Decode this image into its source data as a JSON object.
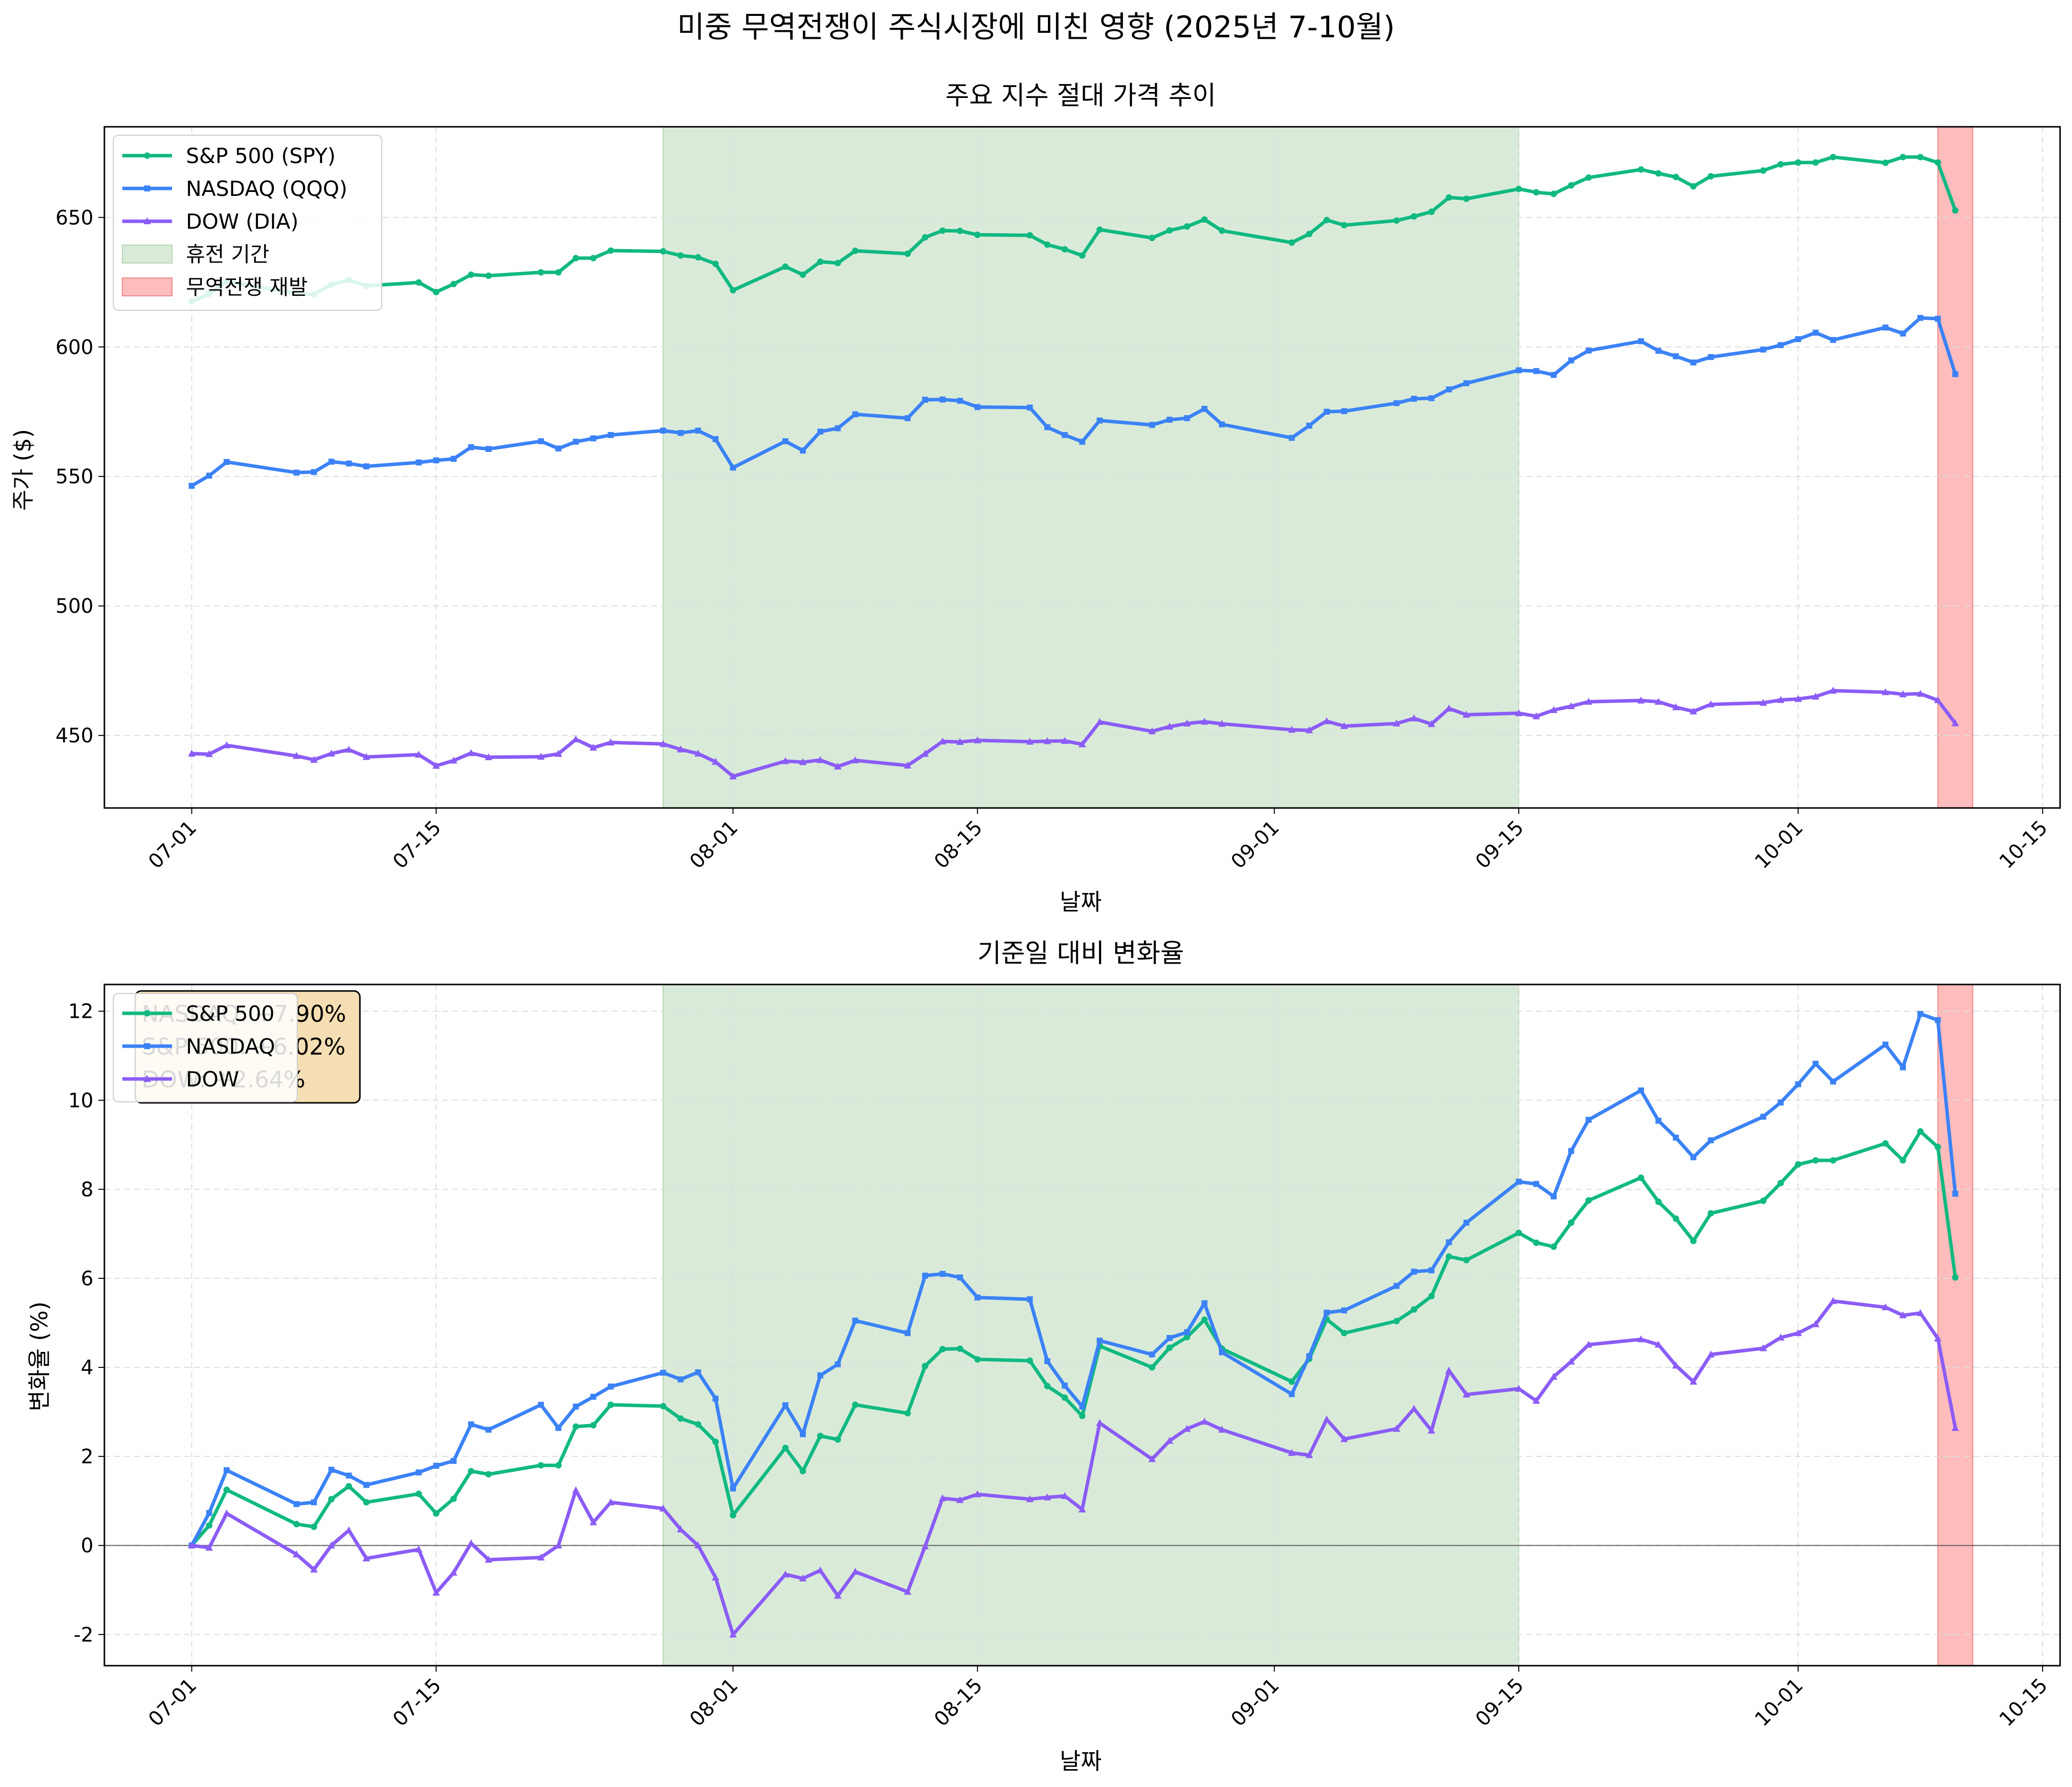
{
  "figure": {
    "title": "미중 무역전쟁이 주식시장에 미친 영향 (2025년 7-10월)"
  },
  "colors": {
    "sp500": "#10b981",
    "nasdaq": "#3b82f6",
    "dow": "#8b5cf6",
    "truce": "#d9ebd8",
    "trade_war": "#ffbcbc",
    "grid": "#dddddd",
    "info_box": "#f5deb3"
  },
  "legend_top": [
    {
      "label": "S&P 500 (SPY)",
      "kind": "line",
      "color": "#10b981",
      "marker": "o"
    },
    {
      "label": "NASDAQ (QQQ)",
      "kind": "line",
      "color": "#3b82f6",
      "marker": "s"
    },
    {
      "label": "DOW (DIA)",
      "kind": "line",
      "color": "#8b5cf6",
      "marker": "^"
    },
    {
      "label": "휴전 기간",
      "kind": "patch",
      "color": "#d9ebd8",
      "edge": "#b5d6b2"
    },
    {
      "label": "무역전쟁 재발",
      "kind": "patch",
      "color": "#ffbcbc",
      "edge": "#f08a8a"
    }
  ],
  "legend_bottom": [
    {
      "label": "S&P 500",
      "color": "#10b981",
      "marker": "o"
    },
    {
      "label": "NASDAQ",
      "color": "#3b82f6",
      "marker": "s"
    },
    {
      "label": "DOW",
      "color": "#8b5cf6",
      "marker": "^"
    }
  ],
  "info_box": {
    "lines": [
      "NASDAQ: +7.90%",
      "S&P 500: +6.02%",
      "DOW: +2.64%"
    ]
  },
  "chart_data": [
    {
      "type": "line",
      "title": "주요 지수 절대 가격 추이",
      "xlabel": "날짜",
      "ylabel": "주가 ($)",
      "x_ticks": [
        "07-01",
        "07-15",
        "08-01",
        "08-15",
        "09-01",
        "09-15",
        "10-01",
        "10-15"
      ],
      "y_ticks": [
        "450",
        "500",
        "550",
        "600",
        "650"
      ],
      "xlim": [
        "2025-06-26",
        "2025-10-16"
      ],
      "ylim": [
        422,
        685
      ],
      "grid": true,
      "legend_position": "upper left",
      "shaded_regions": [
        {
          "label": "휴전 기간",
          "start": "2025-07-28",
          "end": "2025-09-15"
        },
        {
          "label": "무역전쟁 재발",
          "start": "2025-10-09",
          "end": "2025-10-11"
        }
      ],
      "x": [
        "2025-07-01",
        "2025-07-02",
        "2025-07-03",
        "2025-07-07",
        "2025-07-08",
        "2025-07-09",
        "2025-07-10",
        "2025-07-11",
        "2025-07-14",
        "2025-07-15",
        "2025-07-16",
        "2025-07-17",
        "2025-07-18",
        "2025-07-21",
        "2025-07-22",
        "2025-07-23",
        "2025-07-24",
        "2025-07-25",
        "2025-07-28",
        "2025-07-29",
        "2025-07-30",
        "2025-07-31",
        "2025-08-01",
        "2025-08-04",
        "2025-08-05",
        "2025-08-06",
        "2025-08-07",
        "2025-08-08",
        "2025-08-11",
        "2025-08-12",
        "2025-08-13",
        "2025-08-14",
        "2025-08-15",
        "2025-08-18",
        "2025-08-19",
        "2025-08-20",
        "2025-08-21",
        "2025-08-22",
        "2025-08-25",
        "2025-08-26",
        "2025-08-27",
        "2025-08-28",
        "2025-08-29",
        "2025-09-02",
        "2025-09-03",
        "2025-09-04",
        "2025-09-05",
        "2025-09-08",
        "2025-09-09",
        "2025-09-10",
        "2025-09-11",
        "2025-09-12",
        "2025-09-15",
        "2025-09-16",
        "2025-09-17",
        "2025-09-18",
        "2025-09-19",
        "2025-09-22",
        "2025-09-23",
        "2025-09-24",
        "2025-09-25",
        "2025-09-26",
        "2025-09-29",
        "2025-09-30",
        "2025-10-01",
        "2025-10-02",
        "2025-10-03",
        "2025-10-06",
        "2025-10-07",
        "2025-10-08",
        "2025-10-09",
        "2025-10-10"
      ],
      "series": [
        {
          "name": "S&P 500 (SPY)",
          "marker": "o",
          "values": [
            617.6,
            620.5,
            625.3,
            620.6,
            620.3,
            624.1,
            625.8,
            623.6,
            624.9,
            621.2,
            624.3,
            627.9,
            627.5,
            628.8,
            628.8,
            634.3,
            634.3,
            637.2,
            636.9,
            635.3,
            634.6,
            632.1,
            621.9,
            631.0,
            627.9,
            632.9,
            632.4,
            637.1,
            636.0,
            642.3,
            644.9,
            644.8,
            643.3,
            643.1,
            639.5,
            637.7,
            635.3,
            645.3,
            642.1,
            645.0,
            646.5,
            649.2,
            644.9,
            640.3,
            643.6,
            649.0,
            647.0,
            648.8,
            650.4,
            652.2,
            657.7,
            657.2,
            661.0,
            659.7,
            659.1,
            662.4,
            665.4,
            668.5,
            667.0,
            665.6,
            662.0,
            665.9,
            668.1,
            670.5,
            671.2,
            671.2,
            673.3,
            671.1,
            673.3,
            673.3,
            671.2,
            652.7
          ]
        },
        {
          "name": "NASDAQ (QQQ)",
          "marker": "s",
          "values": [
            546.4,
            550.3,
            555.6,
            551.5,
            551.7,
            555.7,
            555.0,
            553.9,
            555.4,
            556.2,
            556.8,
            561.3,
            560.6,
            563.6,
            560.8,
            563.4,
            564.7,
            566.0,
            567.7,
            566.8,
            567.7,
            564.4,
            553.4,
            563.6,
            560.0,
            567.3,
            568.6,
            574.0,
            572.5,
            579.6,
            579.7,
            579.2,
            576.8,
            576.6,
            569.0,
            566.0,
            563.4,
            571.6,
            569.9,
            571.9,
            572.5,
            576.1,
            570.1,
            564.9,
            569.6,
            575.0,
            575.2,
            578.3,
            580.0,
            580.2,
            583.6,
            586.0,
            591.0,
            590.7,
            589.2,
            594.8,
            598.6,
            602.2,
            598.5,
            596.4,
            594.0,
            596.1,
            599.0,
            600.7,
            603.0,
            605.5,
            602.7,
            607.5,
            605.2,
            611.2,
            610.9,
            589.5
          ]
        },
        {
          "name": "DOW (DIA)",
          "marker": "^",
          "values": [
            443.0,
            442.8,
            446.2,
            442.1,
            440.6,
            443.0,
            444.5,
            441.7,
            442.6,
            438.3,
            440.3,
            443.2,
            441.6,
            441.8,
            442.9,
            448.5,
            445.3,
            447.3,
            446.7,
            444.6,
            443.0,
            439.8,
            434.2,
            440.1,
            439.7,
            440.5,
            438.0,
            440.4,
            438.4,
            442.9,
            447.7,
            447.5,
            448.1,
            447.6,
            447.8,
            447.9,
            446.6,
            455.2,
            451.6,
            453.4,
            454.6,
            455.3,
            454.5,
            452.2,
            452.0,
            455.5,
            453.6,
            454.6,
            456.6,
            454.4,
            460.4,
            458.0,
            458.6,
            457.4,
            459.8,
            461.3,
            463.0,
            463.5,
            463.0,
            460.9,
            459.3,
            462.0,
            462.6,
            463.7,
            464.1,
            465.0,
            467.3,
            466.7,
            465.9,
            466.1,
            463.6,
            454.7
          ]
        }
      ]
    },
    {
      "type": "line",
      "title": "기준일 대비 변화율",
      "xlabel": "날짜",
      "ylabel": "변화율 (%)",
      "x_ticks": [
        "07-01",
        "07-15",
        "08-01",
        "08-15",
        "09-01",
        "09-15",
        "10-01",
        "10-15"
      ],
      "y_ticks": [
        "-2",
        "0",
        "2",
        "4",
        "6",
        "8",
        "10",
        "12"
      ],
      "xlim": [
        "2025-06-26",
        "2025-10-16"
      ],
      "ylim": [
        -2.7,
        12.6
      ],
      "grid": true,
      "zero_line": true,
      "legend_position": "upper left",
      "shaded_regions": [
        {
          "label": "휴전 기간",
          "start": "2025-07-28",
          "end": "2025-09-15"
        },
        {
          "label": "무역전쟁 재발",
          "start": "2025-10-09",
          "end": "2025-10-11"
        }
      ],
      "x": [
        "2025-07-01",
        "2025-07-02",
        "2025-07-03",
        "2025-07-07",
        "2025-07-08",
        "2025-07-09",
        "2025-07-10",
        "2025-07-11",
        "2025-07-14",
        "2025-07-15",
        "2025-07-16",
        "2025-07-17",
        "2025-07-18",
        "2025-07-21",
        "2025-07-22",
        "2025-07-23",
        "2025-07-24",
        "2025-07-25",
        "2025-07-28",
        "2025-07-29",
        "2025-07-30",
        "2025-07-31",
        "2025-08-01",
        "2025-08-04",
        "2025-08-05",
        "2025-08-06",
        "2025-08-07",
        "2025-08-08",
        "2025-08-11",
        "2025-08-12",
        "2025-08-13",
        "2025-08-14",
        "2025-08-15",
        "2025-08-18",
        "2025-08-19",
        "2025-08-20",
        "2025-08-21",
        "2025-08-22",
        "2025-08-25",
        "2025-08-26",
        "2025-08-27",
        "2025-08-28",
        "2025-08-29",
        "2025-09-02",
        "2025-09-03",
        "2025-09-04",
        "2025-09-05",
        "2025-09-08",
        "2025-09-09",
        "2025-09-10",
        "2025-09-11",
        "2025-09-12",
        "2025-09-15",
        "2025-09-16",
        "2025-09-17",
        "2025-09-18",
        "2025-09-19",
        "2025-09-22",
        "2025-09-23",
        "2025-09-24",
        "2025-09-25",
        "2025-09-26",
        "2025-09-29",
        "2025-09-30",
        "2025-10-01",
        "2025-10-02",
        "2025-10-03",
        "2025-10-06",
        "2025-10-07",
        "2025-10-08",
        "2025-10-09",
        "2025-10-10"
      ],
      "series": [
        {
          "name": "S&P 500",
          "marker": "o",
          "values": [
            0.0,
            0.45,
            1.25,
            0.48,
            0.42,
            1.04,
            1.33,
            0.97,
            1.16,
            0.72,
            1.05,
            1.67,
            1.6,
            1.8,
            1.8,
            2.67,
            2.7,
            3.16,
            3.13,
            2.85,
            2.72,
            2.33,
            0.68,
            2.19,
            1.67,
            2.46,
            2.38,
            3.16,
            2.97,
            4.03,
            4.41,
            4.42,
            4.18,
            4.15,
            3.58,
            3.32,
            2.91,
            4.48,
            4.0,
            4.44,
            4.68,
            5.07,
            4.42,
            3.68,
            4.19,
            5.08,
            4.77,
            5.04,
            5.3,
            5.6,
            6.49,
            6.41,
            7.02,
            6.8,
            6.71,
            7.25,
            7.75,
            8.26,
            7.72,
            7.34,
            6.84,
            7.46,
            7.74,
            8.14,
            8.56,
            8.65,
            8.65,
            9.03,
            8.65,
            9.3,
            8.95,
            6.02
          ]
        },
        {
          "name": "NASDAQ",
          "marker": "s",
          "values": [
            0.0,
            0.73,
            1.69,
            0.93,
            0.97,
            1.7,
            1.57,
            1.36,
            1.64,
            1.79,
            1.9,
            2.72,
            2.6,
            3.16,
            2.64,
            3.12,
            3.34,
            3.57,
            3.88,
            3.73,
            3.89,
            3.3,
            1.28,
            3.15,
            2.5,
            3.82,
            4.07,
            5.05,
            4.77,
            6.06,
            6.1,
            6.02,
            5.57,
            5.53,
            4.14,
            3.59,
            3.12,
            4.6,
            4.29,
            4.66,
            4.79,
            5.44,
            4.34,
            3.4,
            4.25,
            5.23,
            5.28,
            5.83,
            6.15,
            6.18,
            6.81,
            7.25,
            8.17,
            8.12,
            7.84,
            8.86,
            9.56,
            10.22,
            9.54,
            9.16,
            8.72,
            9.1,
            9.63,
            9.95,
            10.36,
            10.82,
            10.42,
            11.25,
            10.74,
            11.94,
            11.8,
            7.9
          ]
        },
        {
          "name": "DOW",
          "marker": "^",
          "values": [
            0.0,
            -0.05,
            0.72,
            -0.2,
            -0.54,
            0.0,
            0.34,
            -0.29,
            -0.09,
            -1.06,
            -0.61,
            0.05,
            -0.32,
            -0.27,
            0.0,
            1.24,
            0.52,
            0.97,
            0.83,
            0.36,
            0.0,
            -0.72,
            -2.0,
            -0.65,
            -0.74,
            -0.56,
            -1.13,
            -0.59,
            -1.04,
            -0.02,
            1.06,
            1.02,
            1.15,
            1.04,
            1.08,
            1.11,
            0.81,
            2.75,
            1.94,
            2.35,
            2.62,
            2.78,
            2.6,
            2.08,
            2.03,
            2.83,
            2.39,
            2.62,
            3.07,
            2.58,
            3.93,
            3.39,
            3.52,
            3.25,
            3.79,
            4.13,
            4.51,
            4.63,
            4.51,
            4.04,
            3.68,
            4.29,
            4.43,
            4.67,
            4.77,
            4.97,
            5.49,
            5.35,
            5.17,
            5.22,
            4.65,
            2.64
          ]
        }
      ]
    }
  ]
}
